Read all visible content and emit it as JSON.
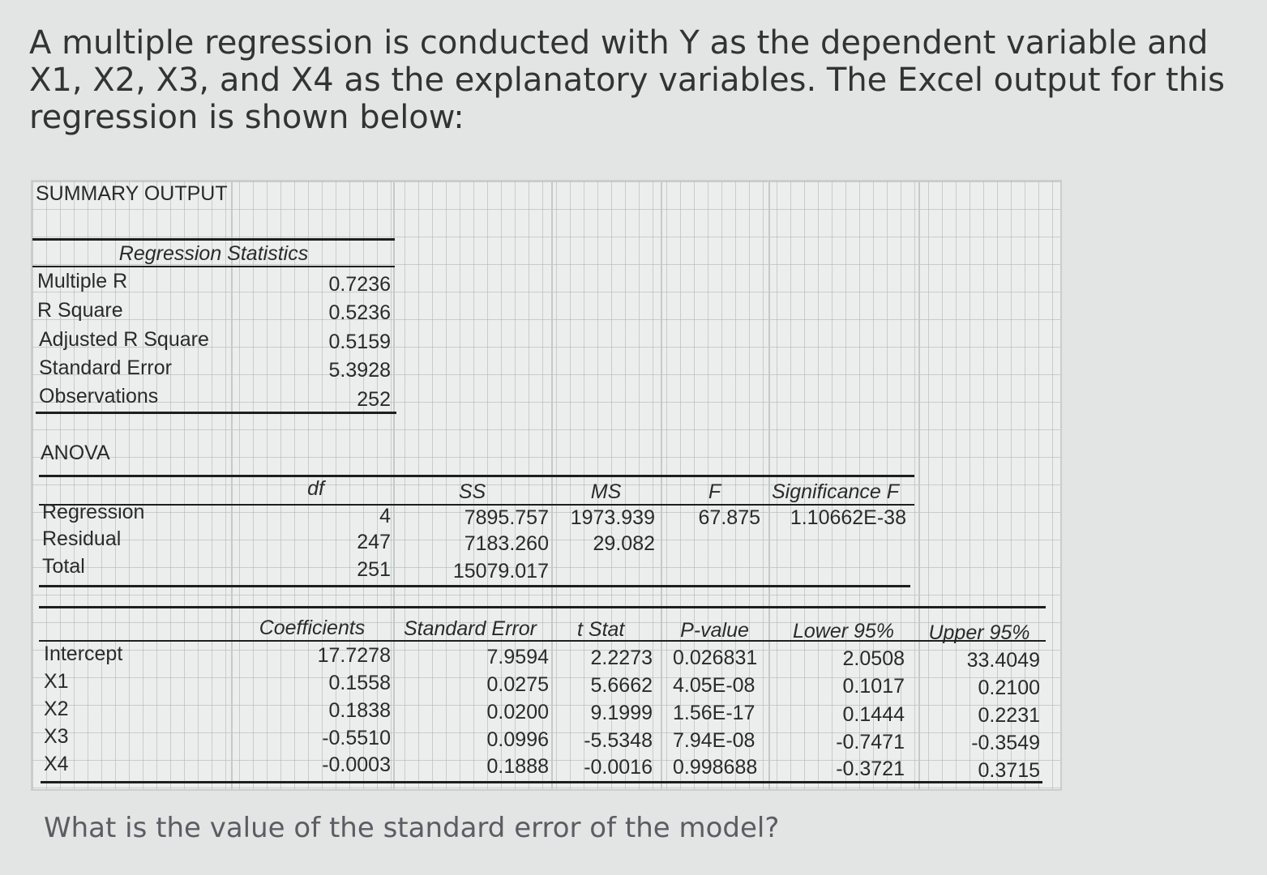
{
  "question": {
    "intro": "A multiple regression is conducted with Y as the dependent variable and X1, X2, X3, and X4 as the explanatory variables. The Excel output for this regression is shown below:",
    "prompt": "What is the value of the standard error of the model?"
  },
  "summary": {
    "title": "SUMMARY OUTPUT",
    "regression_statistics": {
      "heading": "Regression Statistics",
      "rows": [
        {
          "label": "Multiple R",
          "value": "0.7236"
        },
        {
          "label": "R Square",
          "value": "0.5236"
        },
        {
          "label": "Adjusted R Square",
          "value": "0.5159"
        },
        {
          "label": "Standard Error",
          "value": "5.3928"
        },
        {
          "label": "Observations",
          "value": "252"
        }
      ]
    },
    "anova": {
      "title": "ANOVA",
      "headers": [
        "df",
        "SS",
        "MS",
        "F",
        "Significance F"
      ],
      "rows": [
        {
          "label": "Regression",
          "df": "4",
          "ss": "7895.757",
          "ms": "1973.939",
          "f": "67.875",
          "sig_f": "1.10662E-38"
        },
        {
          "label": "Residual",
          "df": "247",
          "ss": "7183.260",
          "ms": "29.082",
          "f": "",
          "sig_f": ""
        },
        {
          "label": "Total",
          "df": "251",
          "ss": "15079.017",
          "ms": "",
          "f": "",
          "sig_f": ""
        }
      ]
    },
    "coefficients": {
      "headers": [
        "Coefficients",
        "Standard Error",
        "t Stat",
        "P-value",
        "Lower 95%",
        "Upper 95%"
      ],
      "rows": [
        {
          "label": "Intercept",
          "coef": "17.7278",
          "se": "7.9594",
          "t": "2.2273",
          "p": "0.026831",
          "lower": "2.0508",
          "upper": "33.4049"
        },
        {
          "label": "X1",
          "coef": "0.1558",
          "se": "0.0275",
          "t": "5.6662",
          "p": "4.05E-08",
          "lower": "0.1017",
          "upper": "0.2100"
        },
        {
          "label": "X2",
          "coef": "0.1838",
          "se": "0.0200",
          "t": "9.1999",
          "p": "1.56E-17",
          "lower": "0.1444",
          "upper": "0.2231"
        },
        {
          "label": "X3",
          "coef": "-0.5510",
          "se": "0.0996",
          "t": "-5.5348",
          "p": "7.94E-08",
          "lower": "-0.7471",
          "upper": "-0.3549"
        },
        {
          "label": "X4",
          "coef": "-0.0003",
          "se": "0.1888",
          "t": "-0.0016",
          "p": "0.998688",
          "lower": "-0.3721",
          "upper": "0.3715"
        }
      ]
    }
  }
}
